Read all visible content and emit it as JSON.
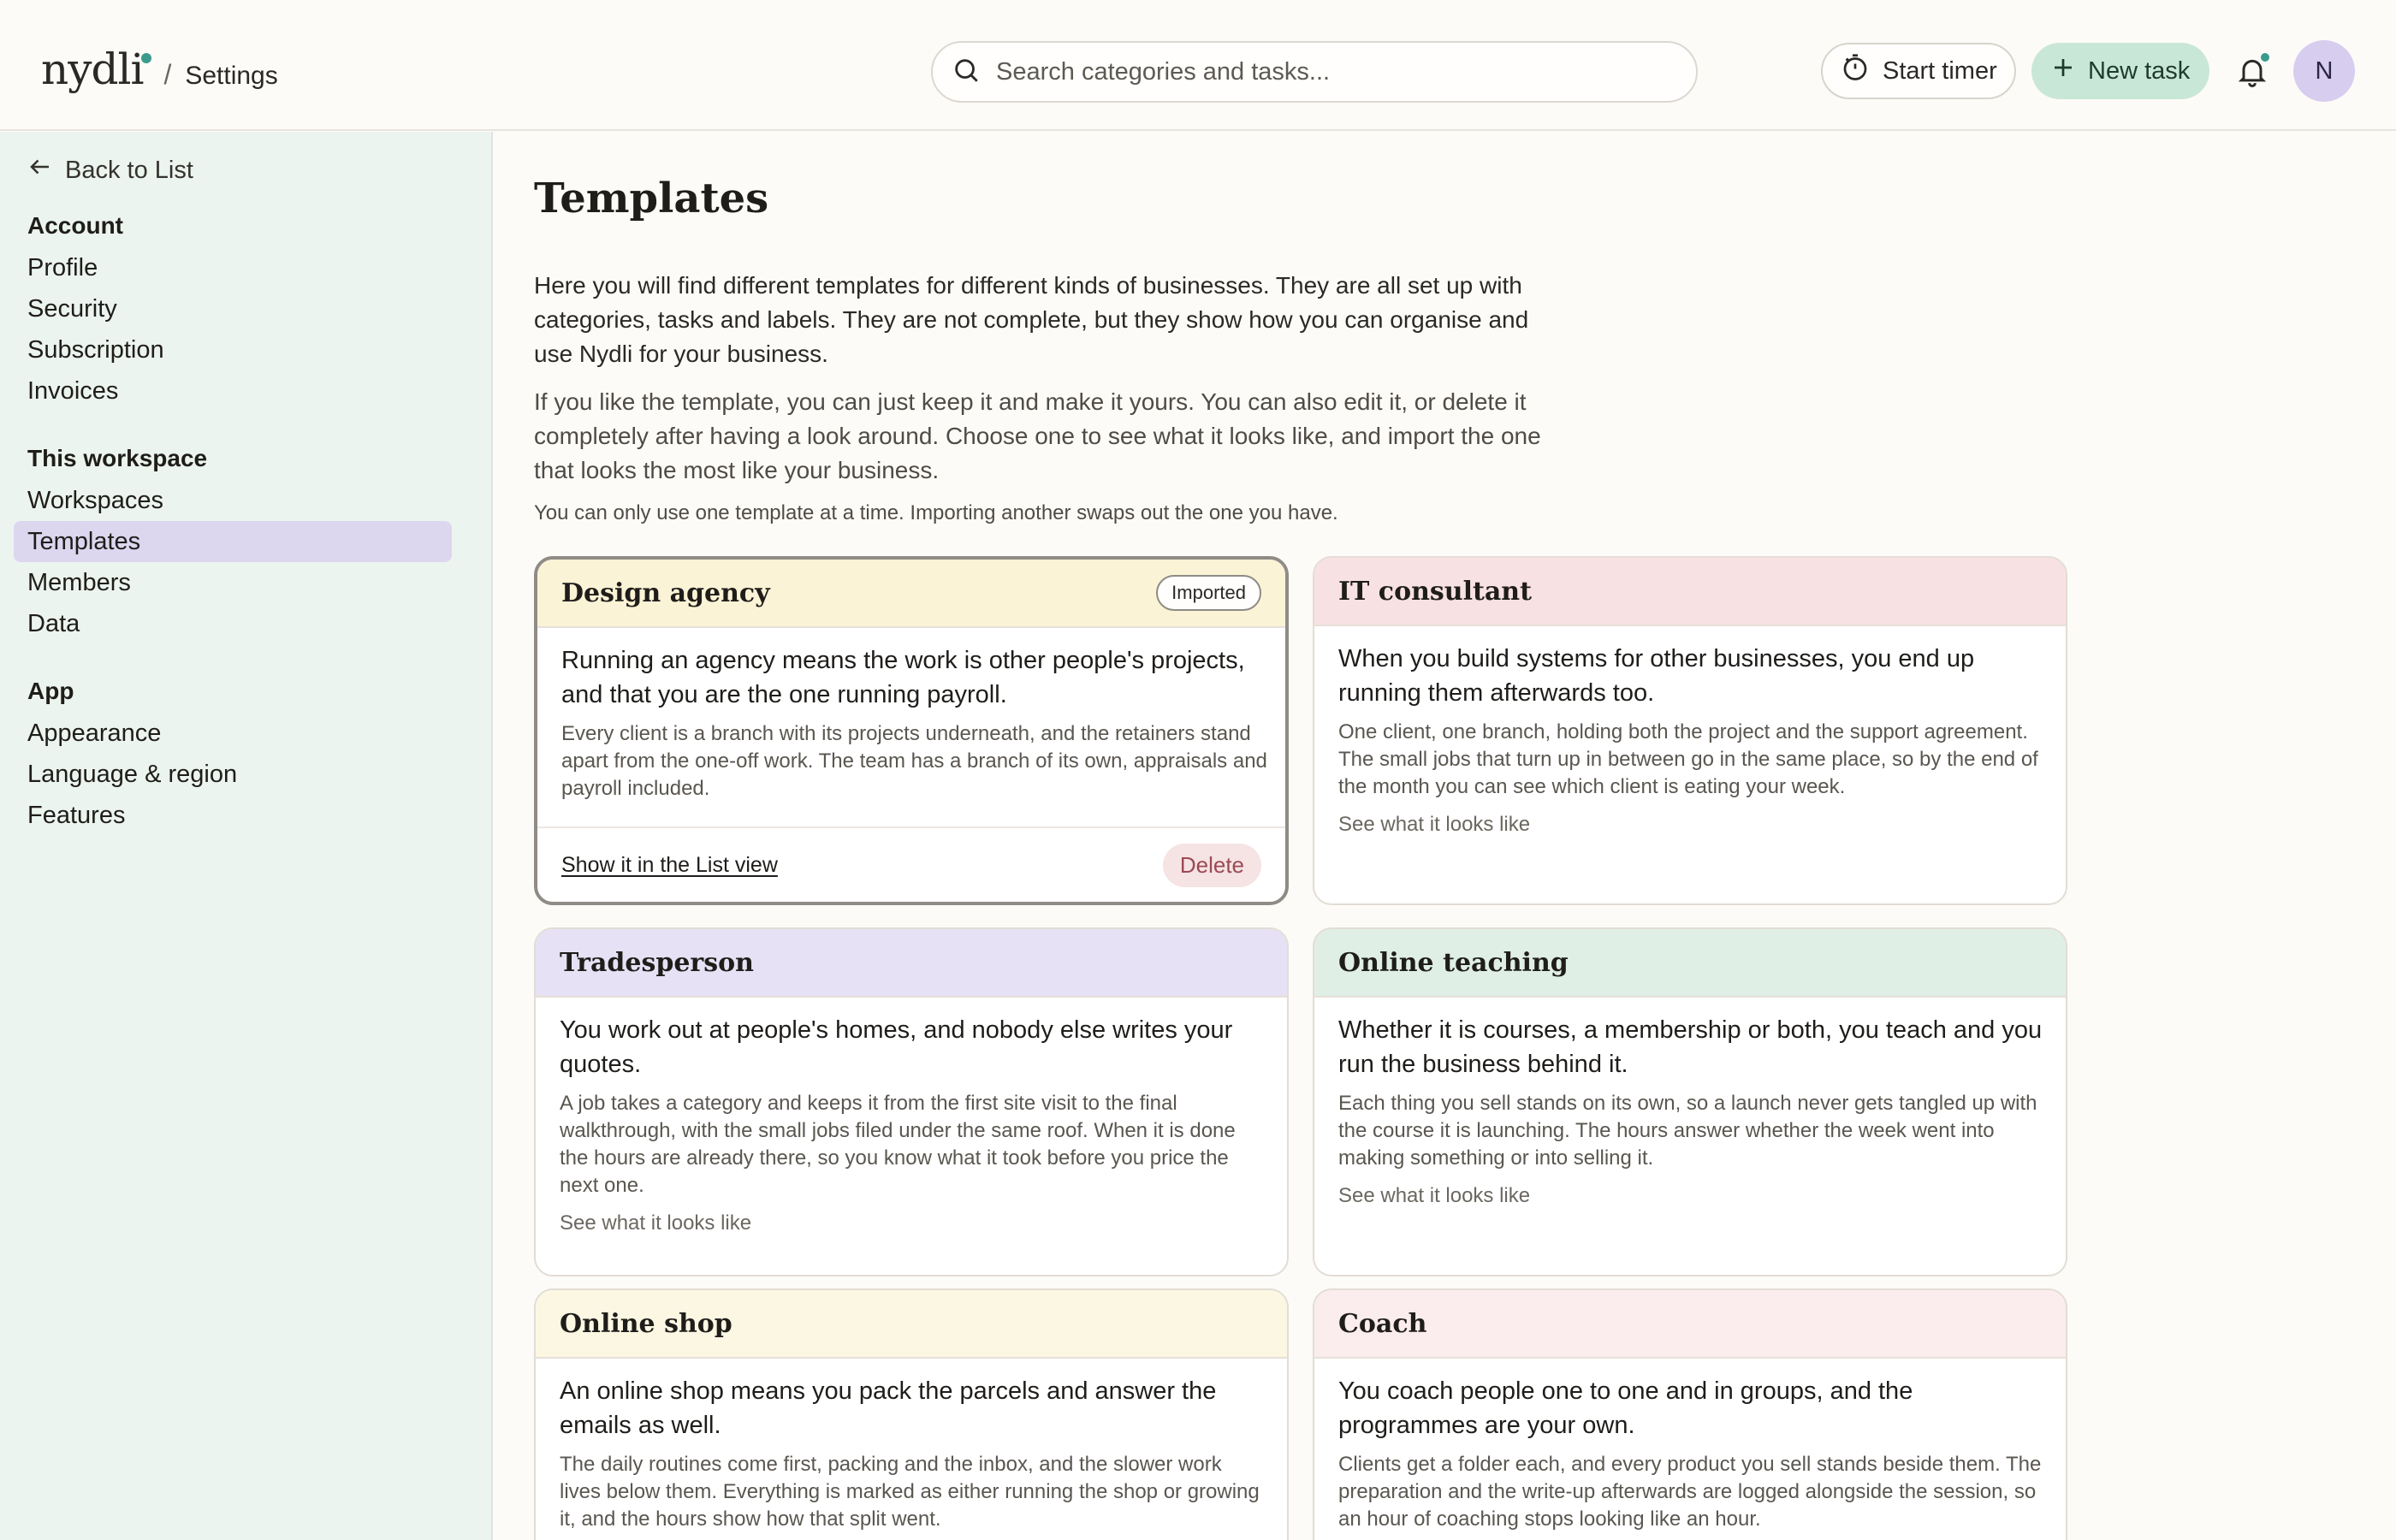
{
  "header": {
    "logo": "nydli",
    "crumb_separator": "/",
    "crumb_current": "Settings",
    "search_placeholder": "Search categories and tasks...",
    "start_timer_label": "Start timer",
    "new_task_label": "New task",
    "avatar_initial": "N",
    "accent_color": "#3a9a8c"
  },
  "sidebar": {
    "back_label": "Back to List",
    "sections": [
      {
        "heading": "Account",
        "items": [
          "Profile",
          "Security",
          "Subscription",
          "Invoices"
        ]
      },
      {
        "heading": "This workspace",
        "items": [
          "Workspaces",
          "Templates",
          "Members",
          "Data"
        ]
      },
      {
        "heading": "App",
        "items": [
          "Appearance",
          "Language & region",
          "Features"
        ]
      }
    ],
    "active_item": "Templates"
  },
  "main": {
    "title": "Templates",
    "intro1": "Here you will find different templates for different kinds of businesses. They are all set up with categories, tasks and labels. They are not complete, but they show how you can organise and use Nydli for your business.",
    "intro2": "If you like the template, you can just keep it and make it yours. You can also edit it, or delete it completely after having a look around. Choose one to see what it looks like, and import the one that looks the most like your business.",
    "note": "You can only use one template at a time. Importing another swaps out the one you have.",
    "cards": [
      {
        "title": "Design agency",
        "color": "#fbf3d6",
        "badge": "Imported",
        "lead": "Running an agency means the work is other people's projects, and that you are the one running payroll.",
        "desc": "Every client is a branch with its projects underneath, and the retainers stand apart from the one-off work. The team has a branch of its own, appraisals and payroll included.",
        "foot_link": "Show it in the List view",
        "delete_label": "Delete"
      },
      {
        "title": "IT consultant",
        "color": "#f8e1e3",
        "lead": "When you build systems for other businesses, you end up running them afterwards too.",
        "desc": "One client, one branch, holding both the project and the support agreement. The small jobs that turn up in between go in the same place, so by the end of the month you can see which client is eating your week.",
        "link": "See what it looks like"
      },
      {
        "title": "Tradesperson",
        "color": "#e6e1f4",
        "lead": "You work out at people's homes, and nobody else writes your quotes.",
        "desc": "A job takes a category and keeps it from the first site visit to the final walkthrough, with the small jobs filed under the same roof. When it is done the hours are already there, so you know what it took before you price the next one.",
        "link": "See what it looks like"
      },
      {
        "title": "Online teaching",
        "color": "#dfefe6",
        "lead": "Whether it is courses, a membership or both, you teach and you run the business behind it.",
        "desc": "Each thing you sell stands on its own, so a launch never gets tangled up with the course it is launching. The hours answer whether the week went into making something or into selling it.",
        "link": "See what it looks like"
      },
      {
        "title": "Online shop",
        "color": "#fbf7e3",
        "lead": "An online shop means you pack the parcels and answer the emails as well.",
        "desc": "The daily routines come first, packing and the inbox, and the slower work lives below them. Everything is marked as either running the shop or growing it, and the hours show how that split went."
      },
      {
        "title": "Coach",
        "color": "#fbeced",
        "lead": "You coach people one to one and in groups, and the programmes are your own.",
        "desc": "Clients get a folder each, and every product you sell stands beside them. The preparation and the write-up afterwards are logged alongside the session, so an hour of coaching stops looking like an hour."
      }
    ]
  }
}
